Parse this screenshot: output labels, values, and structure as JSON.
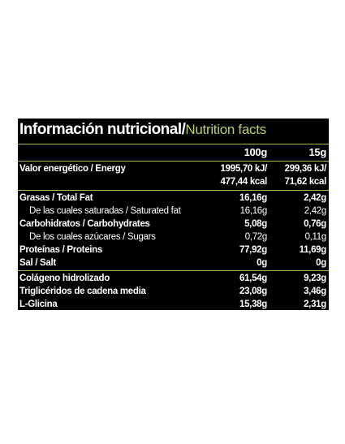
{
  "title": {
    "spanish": "Información nutricional/",
    "english": "Nutrition facts"
  },
  "columns": {
    "col1": "100g",
    "col2": "15g"
  },
  "energy": {
    "label": "Valor energético / Energy",
    "col1_kj": "1995,70 kJ/",
    "col2_kj": "299,36 kJ/",
    "col1_kcal": "477,44 kcal",
    "col2_kcal": "71,62 kcal"
  },
  "nutrients": [
    {
      "label": "Grasas / Total Fat",
      "col1": "16,16g",
      "col2": "2,42g"
    },
    {
      "label": "De las cuales saturadas / Saturated fat",
      "col1": "16,16g",
      "col2": "2,42g"
    },
    {
      "label": "Carbohidratos / Carbohydrates",
      "col1": "5,08g",
      "col2": "0,76g"
    },
    {
      "label": "De los cuales azúcares / Sugars",
      "col1": "0,72g",
      "col2": "0,11g"
    },
    {
      "label": "Proteínas / Proteins",
      "col1": "77,92g",
      "col2": "11,69g"
    },
    {
      "label": "Sal / Salt",
      "col1": "0g",
      "col2": "0g"
    }
  ],
  "extras": [
    {
      "label": "Colágeno hidrolizado",
      "col1": "61,54g",
      "col2": "9,23g"
    },
    {
      "label": "Triglicéridos de cadena media",
      "col1": "23,08g",
      "col2": "3,46g"
    },
    {
      "label": "L-Glicina",
      "col1": "15,38g",
      "col2": "2,31g"
    }
  ],
  "colors": {
    "background": "#000000",
    "text": "#ffffff",
    "accent": "#b5cf6a",
    "divider": "#9dbd55"
  }
}
